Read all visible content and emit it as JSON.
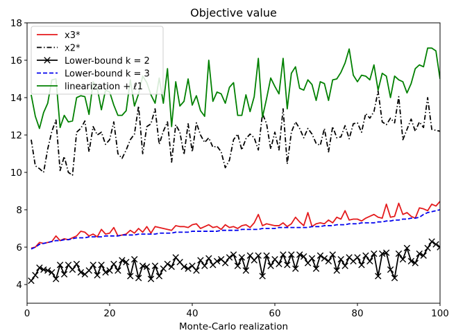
{
  "chart_data": {
    "type": "line",
    "title": "Objective value",
    "xlabel": "Monte-Carlo realization",
    "ylabel": "",
    "xlim": [
      0,
      100
    ],
    "ylim": [
      3,
      18
    ],
    "xticks": [
      0,
      20,
      40,
      60,
      80,
      100
    ],
    "yticks": [
      4,
      6,
      8,
      10,
      12,
      14,
      16,
      18
    ],
    "grid": false,
    "legend_position": "top-left",
    "legend": [
      {
        "label": "x3*",
        "color": "#e41a1c",
        "style": "solid",
        "marker": "none"
      },
      {
        "label": "x2*",
        "color": "#000000",
        "style": "dashdot",
        "marker": "none"
      },
      {
        "label": "Lower-bound k = 2",
        "color": "#000000",
        "style": "solid",
        "marker": "x"
      },
      {
        "label": "Lower-bound k = 3",
        "color": "#0000ee",
        "style": "dashed",
        "marker": "none"
      },
      {
        "label": "linearization + ℓ1",
        "color": "#008000",
        "style": "solid",
        "marker": "none"
      }
    ],
    "x": [
      1,
      2,
      3,
      4,
      5,
      6,
      7,
      8,
      9,
      10,
      11,
      12,
      13,
      14,
      15,
      16,
      17,
      18,
      19,
      20,
      21,
      22,
      23,
      24,
      25,
      26,
      27,
      28,
      29,
      30,
      31,
      32,
      33,
      34,
      35,
      36,
      37,
      38,
      39,
      40,
      41,
      42,
      43,
      44,
      45,
      46,
      47,
      48,
      49,
      50,
      51,
      52,
      53,
      54,
      55,
      56,
      57,
      58,
      59,
      60,
      61,
      62,
      63,
      64,
      65,
      66,
      67,
      68,
      69,
      70,
      71,
      72,
      73,
      74,
      75,
      76,
      77,
      78,
      79,
      80,
      81,
      82,
      83,
      84,
      85,
      86,
      87,
      88,
      89,
      90,
      91,
      92,
      93,
      94,
      95,
      96,
      97,
      98,
      99,
      100
    ],
    "series": [
      {
        "name": "x3*",
        "color": "#e41a1c",
        "values": [
          5.95,
          6.0,
          6.25,
          6.2,
          6.25,
          6.3,
          6.6,
          6.35,
          6.45,
          6.4,
          6.5,
          6.6,
          6.85,
          6.8,
          6.6,
          6.7,
          6.55,
          6.95,
          6.7,
          6.75,
          7.05,
          6.6,
          6.65,
          6.7,
          6.9,
          6.75,
          7.0,
          6.8,
          7.1,
          6.75,
          7.1,
          7.05,
          7.0,
          6.95,
          6.9,
          7.15,
          7.1,
          7.1,
          7.05,
          7.2,
          7.25,
          7.0,
          7.1,
          7.2,
          7.05,
          7.1,
          6.95,
          7.2,
          7.05,
          7.1,
          7.0,
          7.15,
          7.2,
          7.05,
          7.3,
          7.75,
          7.15,
          7.25,
          7.2,
          7.15,
          7.15,
          7.3,
          7.1,
          7.25,
          7.6,
          7.35,
          7.15,
          7.85,
          7.1,
          7.25,
          7.3,
          7.25,
          7.45,
          7.3,
          7.6,
          7.5,
          7.95,
          7.45,
          7.5,
          7.5,
          7.4,
          7.55,
          7.65,
          7.75,
          7.6,
          7.55,
          8.3,
          7.6,
          7.65,
          8.35,
          7.75,
          7.85,
          7.65,
          7.55,
          8.1,
          8.05,
          7.95,
          8.3,
          8.2,
          8.45
        ]
      },
      {
        "name": "x2*",
        "color": "#000000",
        "values": [
          11.75,
          10.35,
          10.2,
          10.0,
          11.25,
          12.2,
          12.8,
          10.1,
          10.85,
          10.0,
          9.85,
          12.15,
          12.35,
          12.75,
          11.1,
          12.45,
          12.0,
          12.15,
          11.5,
          11.75,
          12.7,
          11.0,
          10.75,
          11.2,
          11.75,
          12.05,
          13.55,
          11.0,
          12.45,
          12.6,
          13.4,
          11.5,
          12.2,
          12.7,
          10.55,
          12.55,
          12.15,
          10.95,
          12.6,
          11.1,
          12.65,
          12.0,
          11.6,
          11.85,
          11.35,
          11.4,
          11.1,
          10.25,
          10.65,
          11.75,
          12.05,
          11.2,
          11.8,
          12.05,
          11.85,
          11.2,
          13.15,
          12.6,
          11.25,
          12.15,
          11.2,
          13.4,
          10.45,
          12.15,
          12.7,
          12.35,
          11.85,
          12.35,
          12.05,
          11.55,
          11.45,
          12.35,
          11.1,
          12.45,
          11.85,
          11.9,
          12.5,
          11.8,
          12.6,
          12.65,
          12.15,
          13.15,
          12.9,
          13.25,
          14.35,
          12.7,
          12.55,
          12.9,
          12.65,
          14.05,
          11.75,
          12.3,
          12.85,
          12.2,
          12.7,
          12.4,
          14.0,
          12.3,
          12.25,
          12.2
        ]
      },
      {
        "name": "Lower-bound k = 2",
        "color": "#000000",
        "values": [
          4.2,
          4.5,
          4.9,
          4.8,
          4.75,
          4.65,
          4.3,
          5.05,
          4.55,
          5.05,
          4.8,
          5.1,
          4.65,
          4.55,
          4.75,
          5.05,
          4.5,
          5.05,
          4.65,
          4.75,
          5.1,
          4.75,
          5.3,
          5.2,
          4.45,
          5.35,
          4.35,
          5.0,
          4.95,
          4.3,
          5.0,
          4.45,
          4.85,
          5.1,
          4.95,
          5.45,
          5.2,
          4.95,
          4.85,
          5.0,
          4.75,
          5.3,
          5.0,
          5.4,
          5.05,
          5.25,
          5.35,
          5.15,
          5.45,
          5.6,
          5.0,
          5.45,
          4.75,
          5.55,
          5.3,
          5.55,
          4.45,
          5.55,
          5.0,
          5.35,
          5.1,
          5.6,
          5.05,
          5.6,
          4.85,
          5.6,
          5.5,
          5.15,
          5.4,
          4.85,
          5.55,
          5.4,
          5.25,
          5.6,
          4.75,
          5.35,
          5.0,
          5.45,
          5.25,
          5.45,
          5.05,
          5.55,
          5.25,
          5.65,
          4.45,
          5.65,
          5.7,
          4.8,
          4.35,
          5.65,
          5.35,
          5.95,
          5.25,
          5.15,
          5.65,
          5.55,
          5.95,
          6.3,
          6.15,
          6.0
        ]
      },
      {
        "name": "Lower-bound k = 3",
        "color": "#0000ee",
        "values": [
          5.9,
          6.0,
          6.15,
          6.2,
          6.25,
          6.3,
          6.35,
          6.35,
          6.4,
          6.4,
          6.45,
          6.5,
          6.5,
          6.5,
          6.55,
          6.55,
          6.55,
          6.55,
          6.6,
          6.6,
          6.6,
          6.6,
          6.65,
          6.65,
          6.65,
          6.65,
          6.7,
          6.7,
          6.7,
          6.7,
          6.7,
          6.75,
          6.75,
          6.75,
          6.75,
          6.8,
          6.8,
          6.8,
          6.8,
          6.85,
          6.85,
          6.85,
          6.85,
          6.85,
          6.85,
          6.85,
          6.9,
          6.9,
          6.9,
          6.9,
          6.9,
          6.95,
          6.95,
          6.95,
          6.95,
          6.95,
          7.0,
          7.0,
          7.0,
          7.0,
          7.05,
          7.05,
          7.05,
          7.05,
          7.05,
          7.05,
          7.05,
          7.05,
          7.1,
          7.1,
          7.1,
          7.15,
          7.15,
          7.15,
          7.2,
          7.2,
          7.2,
          7.25,
          7.25,
          7.25,
          7.3,
          7.3,
          7.3,
          7.3,
          7.35,
          7.35,
          7.4,
          7.4,
          7.45,
          7.45,
          7.5,
          7.5,
          7.55,
          7.55,
          7.6,
          7.75,
          7.85,
          7.9,
          7.95,
          8.0
        ]
      },
      {
        "name": "linearization + ℓ1",
        "color": "#008000",
        "values": [
          14.15,
          13.0,
          12.35,
          13.2,
          13.7,
          14.95,
          15.0,
          12.4,
          13.05,
          12.7,
          12.75,
          14.0,
          14.1,
          14.05,
          13.1,
          14.85,
          14.5,
          13.35,
          14.4,
          14.3,
          13.6,
          13.05,
          13.05,
          13.3,
          14.95,
          13.55,
          14.2,
          15.15,
          14.8,
          14.15,
          13.7,
          15.05,
          13.7,
          15.55,
          12.45,
          14.85,
          13.55,
          13.8,
          15.0,
          13.6,
          14.1,
          13.3,
          13.0,
          16.0,
          13.8,
          14.3,
          14.2,
          13.7,
          14.55,
          14.8,
          13.05,
          13.05,
          14.15,
          13.25,
          14.05,
          16.1,
          12.95,
          13.95,
          15.05,
          14.6,
          14.2,
          16.1,
          13.4,
          15.3,
          15.65,
          14.5,
          14.4,
          14.95,
          14.7,
          13.85,
          14.85,
          14.75,
          13.85,
          14.95,
          15.0,
          15.35,
          15.85,
          16.6,
          15.2,
          14.85,
          15.2,
          15.15,
          14.95,
          15.75,
          14.4,
          15.3,
          15.15,
          14.0,
          15.15,
          14.95,
          14.85,
          14.25,
          14.75,
          15.55,
          15.75,
          15.65,
          16.65,
          16.65,
          16.5,
          15.0
        ]
      }
    ]
  }
}
